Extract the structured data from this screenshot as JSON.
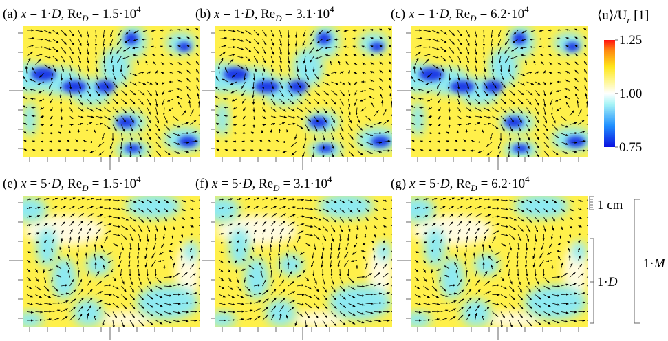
{
  "panels": [
    {
      "label": "(a)",
      "x_var": "x",
      "x_value": "= 1·",
      "x_unit": "D",
      "re": "Re",
      "re_sub": "D",
      "re_value": "= 1.5·10",
      "re_exp": "4"
    },
    {
      "label": "(b)",
      "x_var": "x",
      "x_value": "= 1·",
      "x_unit": "D",
      "re": "Re",
      "re_sub": "D",
      "re_value": "= 3.1·10",
      "re_exp": "4"
    },
    {
      "label": "(c)",
      "x_var": "x",
      "x_value": "= 1·",
      "x_unit": "D",
      "re": "Re",
      "re_sub": "D",
      "re_value": "= 6.2·10",
      "re_exp": "4"
    },
    {
      "label": "(e)",
      "x_var": "x",
      "x_value": "= 5·",
      "x_unit": "D",
      "re": "Re",
      "re_sub": "D",
      "re_value": "= 1.5·10",
      "re_exp": "4"
    },
    {
      "label": "(f)",
      "x_var": "x",
      "x_value": "= 5·",
      "x_unit": "D",
      "re": "Re",
      "re_sub": "D",
      "re_value": "= 3.1·10",
      "re_exp": "4"
    },
    {
      "label": "(g)",
      "x_var": "x",
      "x_value": "= 5·",
      "x_unit": "D",
      "re": "Re",
      "re_sub": "D",
      "re_value": "= 6.2·10",
      "re_exp": "4"
    }
  ],
  "colorbar": {
    "label_main": "⟨u⟩/U",
    "label_sub": "r",
    "label_unit": " [1]",
    "lim": [
      0.75,
      1.25
    ],
    "ticks": [
      0.75,
      {
        "value": 1,
        "label": "1.00"
      },
      1.25
    ]
  },
  "scales": {
    "cm": "1 cm",
    "diameter_num": "1·",
    "diameter_var": "D",
    "mesh_num": "1·",
    "mesh_var": "M"
  }
}
